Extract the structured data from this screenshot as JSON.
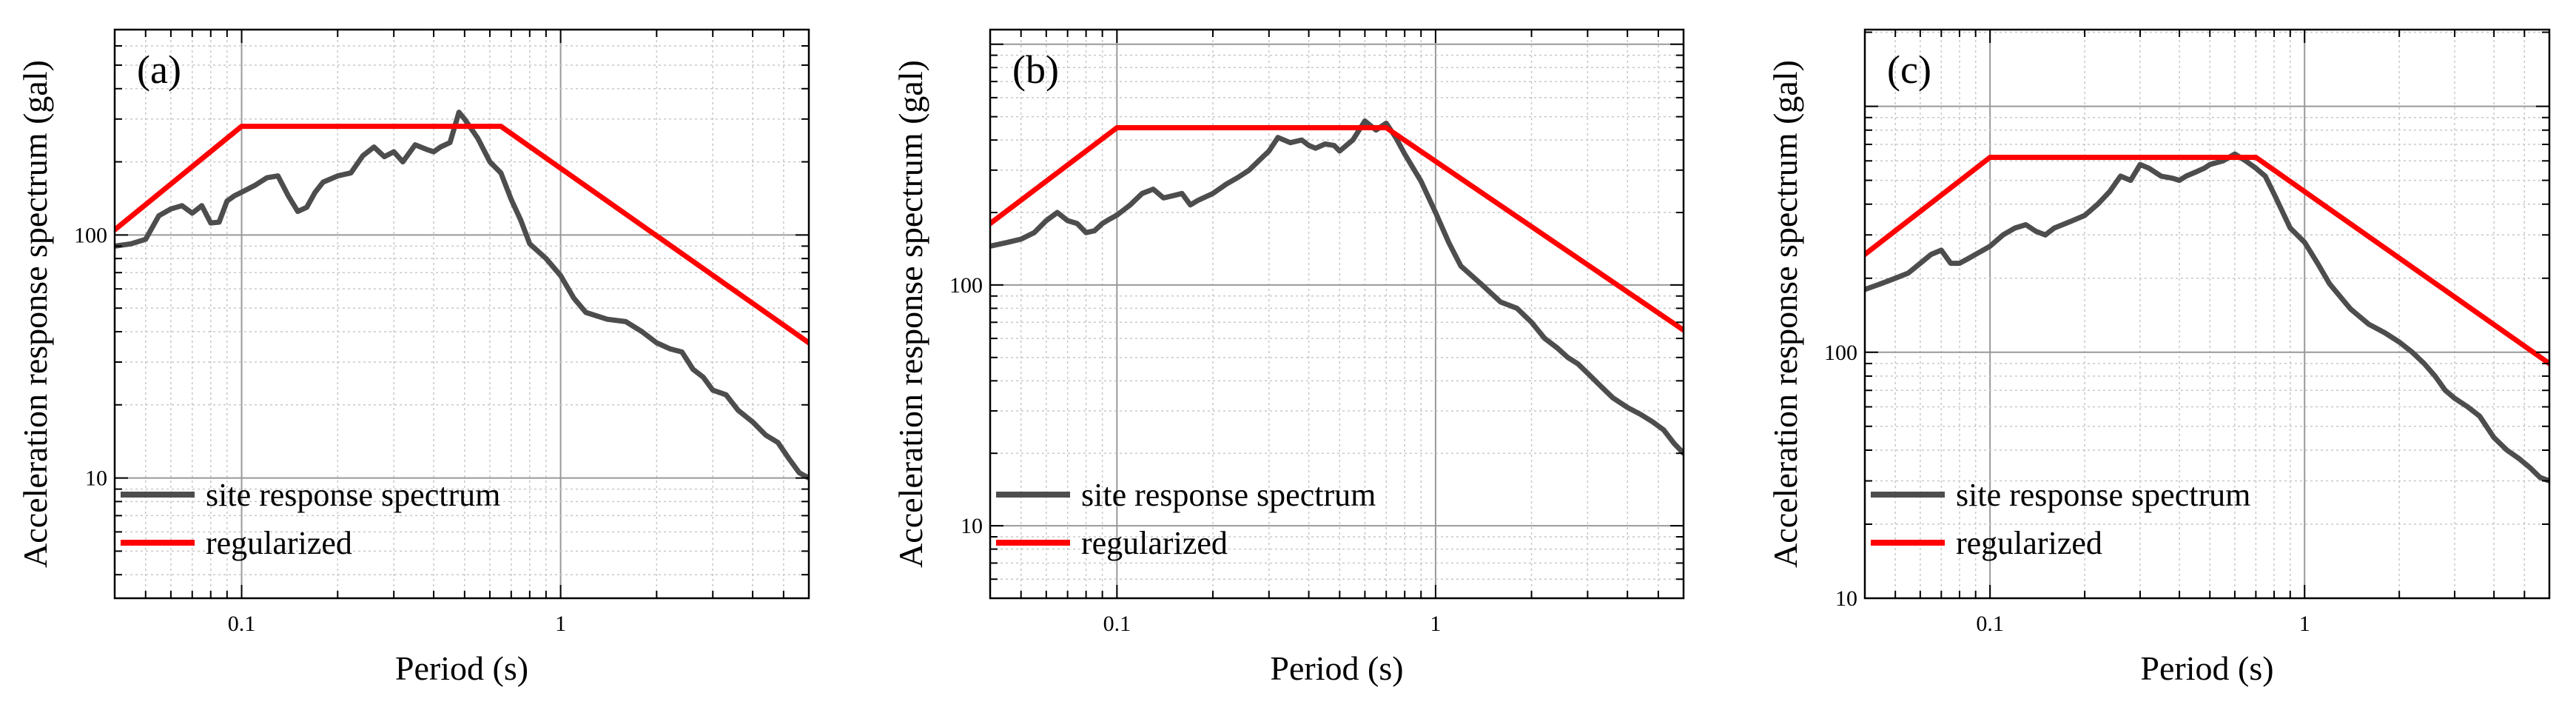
{
  "chart_data": [
    {
      "type": "line",
      "panel_label": "(a)",
      "xlabel": "Period (s)",
      "ylabel": "Acceleration response spectrum (gal)",
      "xscale": "log",
      "yscale": "log",
      "xlim": [
        0.04,
        6.0
      ],
      "ylim": [
        3.2,
        700
      ],
      "xtick_labels": [
        {
          "value": 0.1,
          "label": "0.1"
        },
        {
          "value": 1,
          "label": "1"
        }
      ],
      "ytick_labels": [
        {
          "value": 10,
          "label": "10"
        },
        {
          "value": 100,
          "label": "100"
        }
      ],
      "grid": true,
      "legend_position": "lower-left",
      "series": [
        {
          "name": "site response spectrum",
          "color": "#4d4d4d",
          "x": [
            0.04,
            0.045,
            0.05,
            0.055,
            0.06,
            0.065,
            0.07,
            0.075,
            0.08,
            0.085,
            0.09,
            0.095,
            0.1,
            0.11,
            0.12,
            0.13,
            0.14,
            0.15,
            0.16,
            0.17,
            0.18,
            0.2,
            0.22,
            0.24,
            0.26,
            0.28,
            0.3,
            0.32,
            0.35,
            0.38,
            0.4,
            0.42,
            0.45,
            0.48,
            0.5,
            0.55,
            0.6,
            0.65,
            0.7,
            0.75,
            0.8,
            0.9,
            1.0,
            1.1,
            1.2,
            1.4,
            1.6,
            1.8,
            2.0,
            2.2,
            2.4,
            2.6,
            2.8,
            3.0,
            3.3,
            3.6,
            4.0,
            4.4,
            4.8,
            5.2,
            5.6,
            6.0
          ],
          "y": [
            90,
            92,
            96,
            120,
            128,
            132,
            123,
            132,
            112,
            113,
            138,
            145,
            150,
            160,
            172,
            175,
            145,
            125,
            130,
            150,
            165,
            175,
            180,
            212,
            230,
            210,
            220,
            200,
            235,
            225,
            220,
            230,
            240,
            320,
            300,
            250,
            200,
            180,
            140,
            115,
            92,
            80,
            68,
            55,
            48,
            45,
            44,
            40,
            36,
            34,
            33,
            28,
            26,
            23,
            22,
            19,
            17,
            15,
            14,
            12,
            10.5,
            10
          ]
        },
        {
          "name": "regularized",
          "color": "#ff0000",
          "x": [
            0.04,
            0.1,
            0.65,
            6.0
          ],
          "y": [
            105,
            280,
            280,
            36
          ]
        }
      ]
    },
    {
      "type": "line",
      "panel_label": "(b)",
      "xlabel": "Period (s)",
      "ylabel": "Acceleration response spectrum (gal)",
      "xscale": "log",
      "yscale": "log",
      "xlim": [
        0.04,
        6.0
      ],
      "ylim": [
        5,
        1150
      ],
      "xtick_labels": [
        {
          "value": 0.1,
          "label": "0.1"
        },
        {
          "value": 1,
          "label": "1"
        }
      ],
      "ytick_labels": [
        {
          "value": 10,
          "label": "10"
        },
        {
          "value": 100,
          "label": "100"
        }
      ],
      "grid": true,
      "legend_position": "lower-left",
      "series": [
        {
          "name": "site response spectrum",
          "color": "#4d4d4d",
          "x": [
            0.04,
            0.045,
            0.05,
            0.055,
            0.06,
            0.065,
            0.07,
            0.075,
            0.08,
            0.085,
            0.09,
            0.095,
            0.1,
            0.11,
            0.12,
            0.13,
            0.14,
            0.15,
            0.16,
            0.17,
            0.18,
            0.2,
            0.22,
            0.24,
            0.26,
            0.28,
            0.3,
            0.32,
            0.35,
            0.38,
            0.4,
            0.42,
            0.45,
            0.48,
            0.5,
            0.55,
            0.6,
            0.65,
            0.7,
            0.75,
            0.8,
            0.9,
            1.0,
            1.1,
            1.2,
            1.4,
            1.6,
            1.8,
            2.0,
            2.2,
            2.4,
            2.6,
            2.8,
            3.0,
            3.3,
            3.6,
            4.0,
            4.4,
            4.8,
            5.2,
            5.6,
            6.0
          ],
          "y": [
            145,
            150,
            155,
            165,
            185,
            200,
            185,
            180,
            165,
            168,
            180,
            188,
            195,
            215,
            240,
            250,
            230,
            235,
            240,
            215,
            225,
            240,
            262,
            280,
            300,
            330,
            360,
            410,
            390,
            400,
            380,
            370,
            385,
            380,
            360,
            400,
            480,
            440,
            470,
            410,
            350,
            270,
            200,
            150,
            120,
            100,
            85,
            80,
            70,
            60,
            55,
            50,
            47,
            43,
            38,
            34,
            31,
            29,
            27,
            25,
            22,
            20
          ]
        },
        {
          "name": "regularized",
          "color": "#ff0000",
          "x": [
            0.04,
            0.1,
            0.7,
            6.0
          ],
          "y": [
            180,
            450,
            450,
            65
          ]
        }
      ]
    },
    {
      "type": "line",
      "panel_label": "(c)",
      "xlabel": "Period (s)",
      "ylabel": "Acceleration response spectrum (gal)",
      "xscale": "log",
      "yscale": "log",
      "xlim": [
        0.04,
        6.0
      ],
      "ylim": [
        10,
        2050
      ],
      "xtick_labels": [
        {
          "value": 0.1,
          "label": "0.1"
        },
        {
          "value": 1,
          "label": "1"
        }
      ],
      "ytick_labels": [
        {
          "value": 10,
          "label": "10"
        },
        {
          "value": 100,
          "label": "100"
        }
      ],
      "grid": true,
      "legend_position": "lower-left",
      "series": [
        {
          "name": "site response spectrum",
          "color": "#4d4d4d",
          "x": [
            0.04,
            0.045,
            0.05,
            0.055,
            0.06,
            0.065,
            0.07,
            0.075,
            0.08,
            0.085,
            0.09,
            0.095,
            0.1,
            0.11,
            0.12,
            0.13,
            0.14,
            0.15,
            0.16,
            0.17,
            0.18,
            0.2,
            0.22,
            0.24,
            0.26,
            0.28,
            0.3,
            0.32,
            0.35,
            0.38,
            0.4,
            0.42,
            0.45,
            0.48,
            0.5,
            0.55,
            0.6,
            0.65,
            0.7,
            0.75,
            0.8,
            0.9,
            1.0,
            1.1,
            1.2,
            1.4,
            1.6,
            1.8,
            2.0,
            2.2,
            2.4,
            2.6,
            2.8,
            3.0,
            3.3,
            3.6,
            4.0,
            4.4,
            4.8,
            5.2,
            5.6,
            6.0
          ],
          "y": [
            180,
            190,
            200,
            210,
            230,
            250,
            260,
            230,
            230,
            240,
            250,
            260,
            270,
            300,
            320,
            330,
            310,
            300,
            320,
            330,
            340,
            360,
            400,
            450,
            520,
            500,
            580,
            560,
            520,
            510,
            500,
            520,
            540,
            560,
            580,
            600,
            640,
            600,
            560,
            520,
            440,
            320,
            280,
            230,
            190,
            150,
            130,
            120,
            110,
            100,
            90,
            80,
            70,
            65,
            60,
            55,
            45,
            40,
            37,
            34,
            31,
            30
          ]
        },
        {
          "name": "regularized",
          "color": "#ff0000",
          "x": [
            0.04,
            0.1,
            0.7,
            6.0
          ],
          "y": [
            250,
            620,
            620,
            90
          ]
        }
      ]
    }
  ]
}
